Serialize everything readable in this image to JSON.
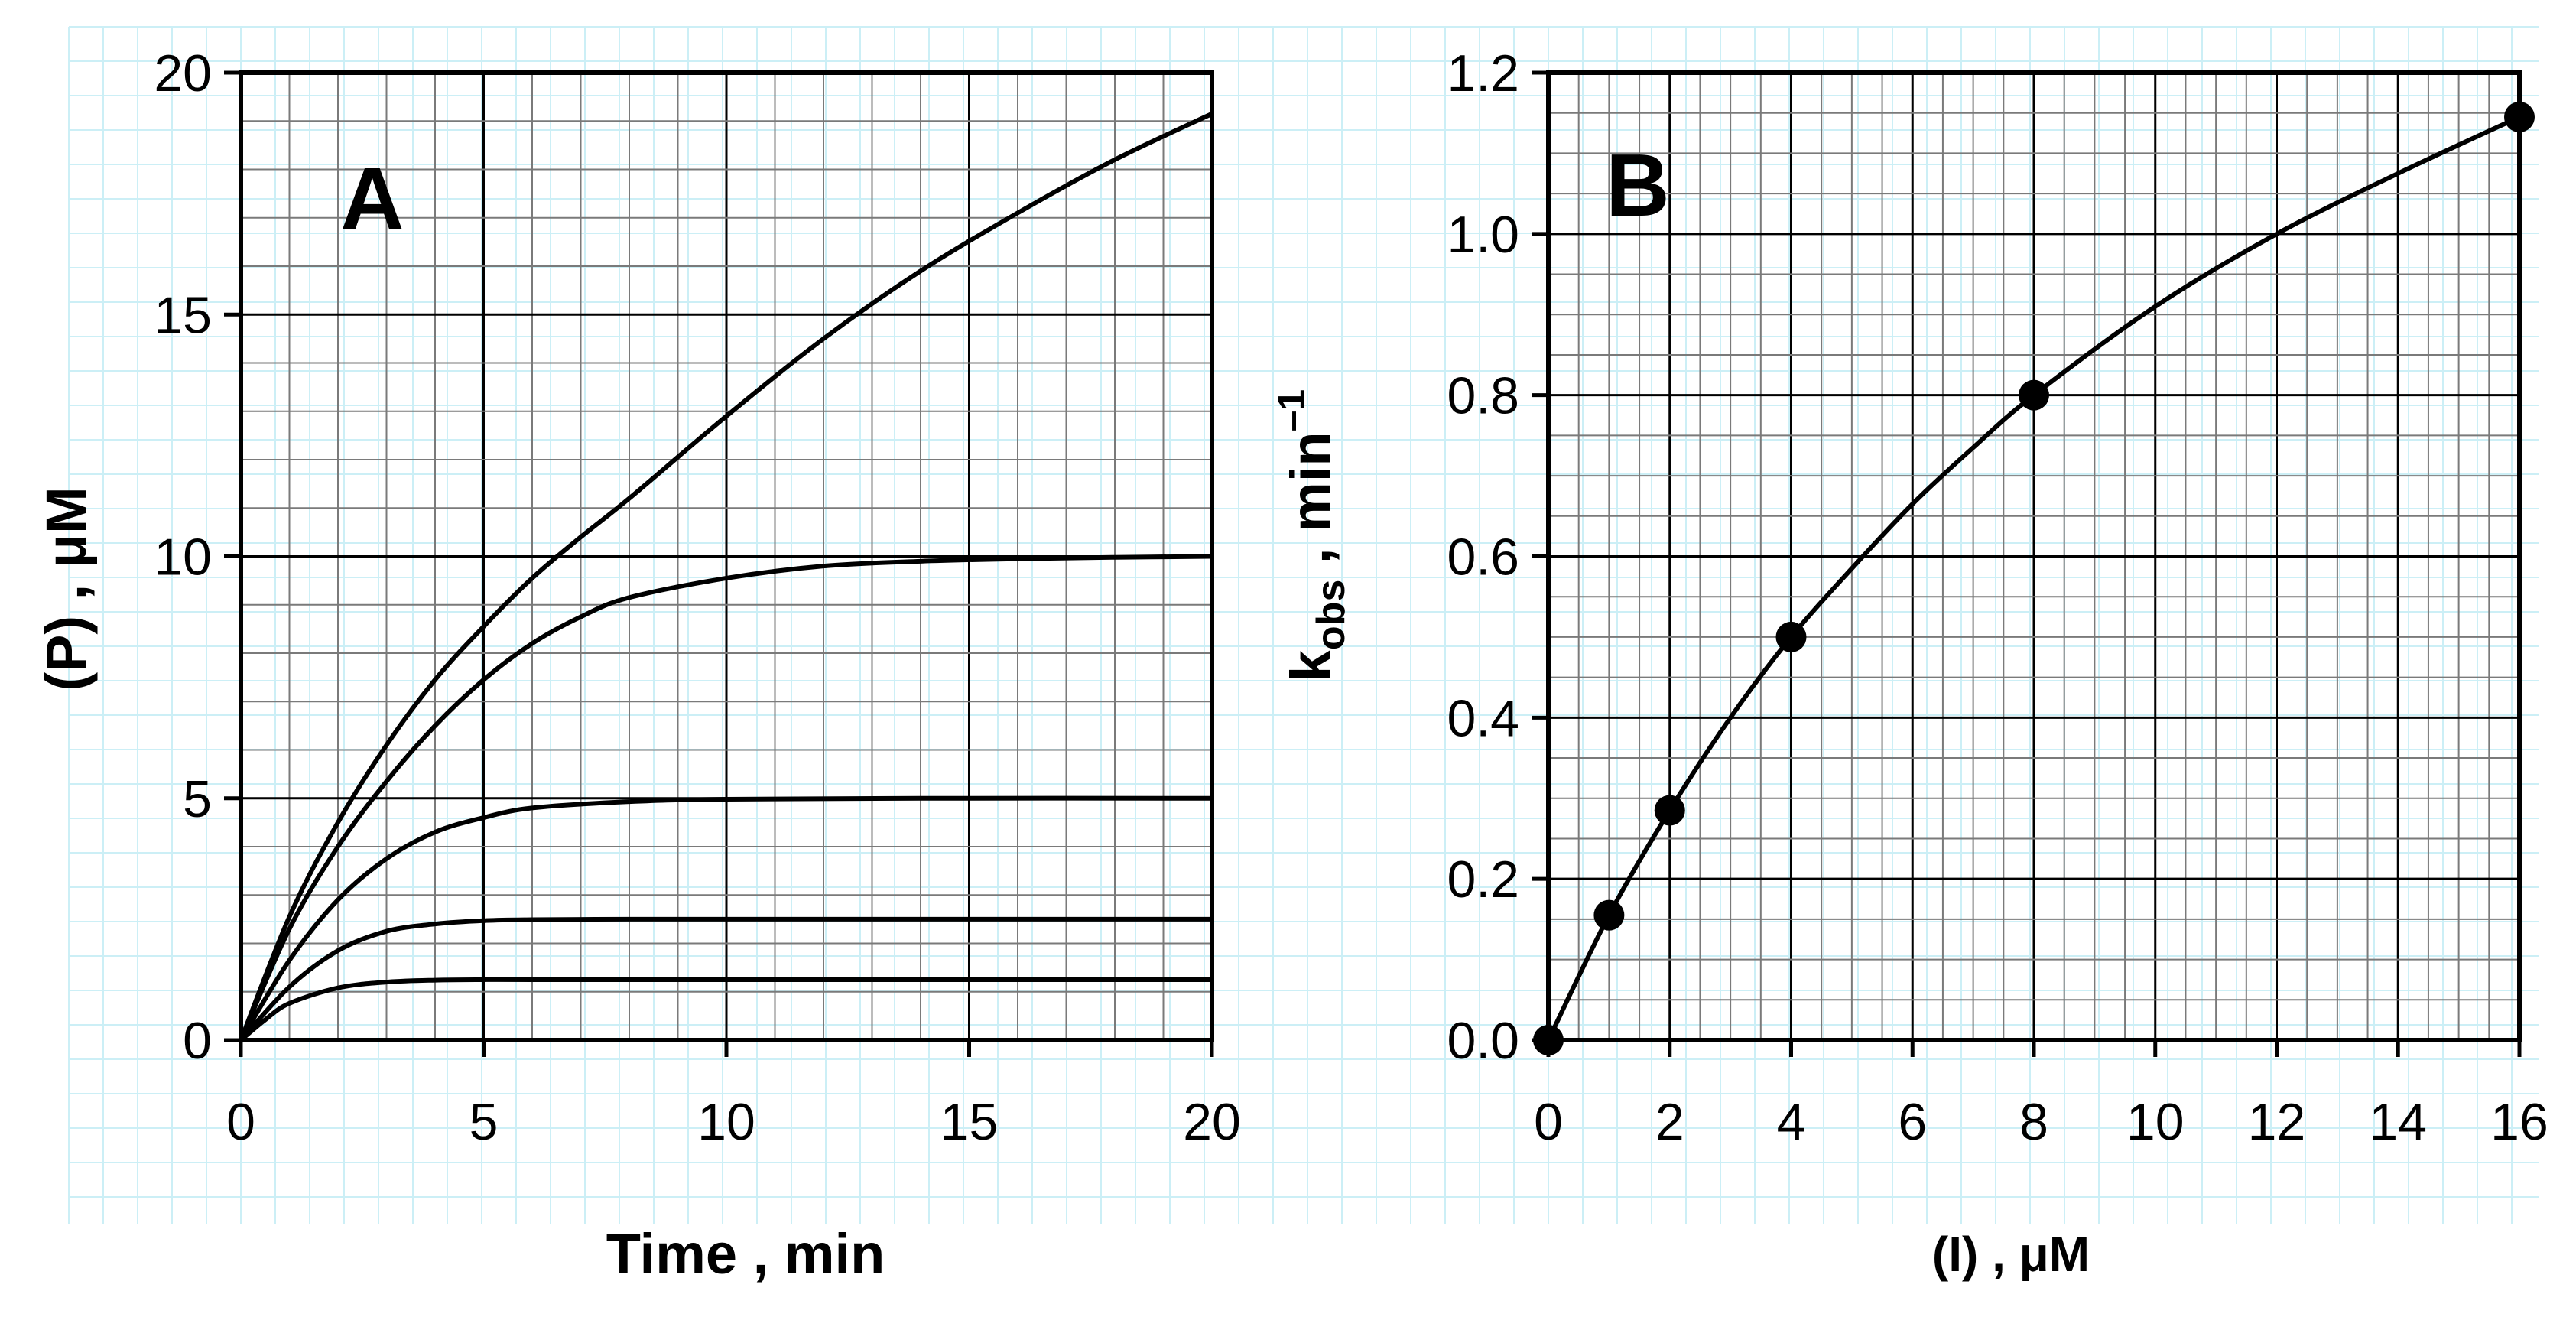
{
  "chart_data": [
    {
      "type": "line",
      "panel_label": "A",
      "xlabel": "Time , min",
      "ylabel": "(P) , μM",
      "xlim": [
        0,
        20
      ],
      "ylim": [
        0,
        20
      ],
      "xticks": [
        "0",
        "5",
        "10",
        "15",
        "20"
      ],
      "yticks": [
        "0",
        "5",
        "10",
        "15",
        "20"
      ],
      "grid": true,
      "legend": "none",
      "series": [
        {
          "x": [
            0,
            1,
            2,
            3,
            4,
            5,
            6,
            7,
            8,
            10,
            12,
            14,
            16,
            18,
            20
          ],
          "y": [
            0,
            2.55,
            4.5,
            6.1,
            7.45,
            8.55,
            9.55,
            10.4,
            11.2,
            12.9,
            14.5,
            15.9,
            17.1,
            18.2,
            19.15
          ]
        },
        {
          "x": [
            0,
            1,
            2,
            3,
            4,
            5,
            6,
            7,
            8,
            10,
            12,
            14,
            16,
            18,
            20
          ],
          "y": [
            0,
            2.3,
            4.0,
            5.35,
            6.5,
            7.45,
            8.2,
            8.75,
            9.15,
            9.55,
            9.8,
            9.9,
            9.95,
            9.98,
            10.0
          ]
        },
        {
          "x": [
            0,
            1,
            2,
            3,
            4,
            5,
            6,
            8,
            10,
            14,
            20
          ],
          "y": [
            0,
            1.65,
            2.9,
            3.75,
            4.3,
            4.6,
            4.8,
            4.93,
            4.98,
            5.0,
            5.0
          ]
        },
        {
          "x": [
            0,
            1,
            2,
            3,
            4,
            5,
            6,
            8,
            10,
            14,
            20
          ],
          "y": [
            0,
            1.1,
            1.85,
            2.25,
            2.4,
            2.47,
            2.49,
            2.5,
            2.5,
            2.5,
            2.5
          ]
        },
        {
          "x": [
            0,
            0.5,
            1,
            2,
            3,
            4,
            5,
            6,
            8,
            10,
            14,
            20
          ],
          "y": [
            0,
            0.42,
            0.76,
            1.08,
            1.2,
            1.24,
            1.25,
            1.25,
            1.25,
            1.25,
            1.25,
            1.25
          ]
        }
      ]
    },
    {
      "type": "scatter",
      "panel_label": "B",
      "xlabel": "(I) , μM",
      "ylabel": "k",
      "ylabel_sub": "obs",
      "ylabel_tail": " , min",
      "ylabel_sup": "–1",
      "xlim": [
        0,
        16
      ],
      "ylim": [
        0,
        1.2
      ],
      "xticks": [
        "0",
        "2",
        "4",
        "6",
        "8",
        "10",
        "12",
        "14",
        "16"
      ],
      "yticks": [
        "0.0",
        "0.2",
        "0.4",
        "0.6",
        "0.8",
        "1.0",
        "1.2"
      ],
      "grid": true,
      "legend": "none",
      "points": {
        "x": [
          0,
          1,
          2,
          4,
          8,
          16
        ],
        "y": [
          0,
          0.155,
          0.285,
          0.5,
          0.8,
          1.145
        ]
      },
      "fit_line": {
        "x": [
          0,
          1,
          2,
          3,
          4,
          5,
          6,
          7,
          8,
          10,
          12,
          14,
          16
        ],
        "y": [
          0,
          0.155,
          0.285,
          0.4,
          0.5,
          0.585,
          0.665,
          0.735,
          0.8,
          0.91,
          1.0,
          1.075,
          1.145
        ]
      }
    }
  ]
}
